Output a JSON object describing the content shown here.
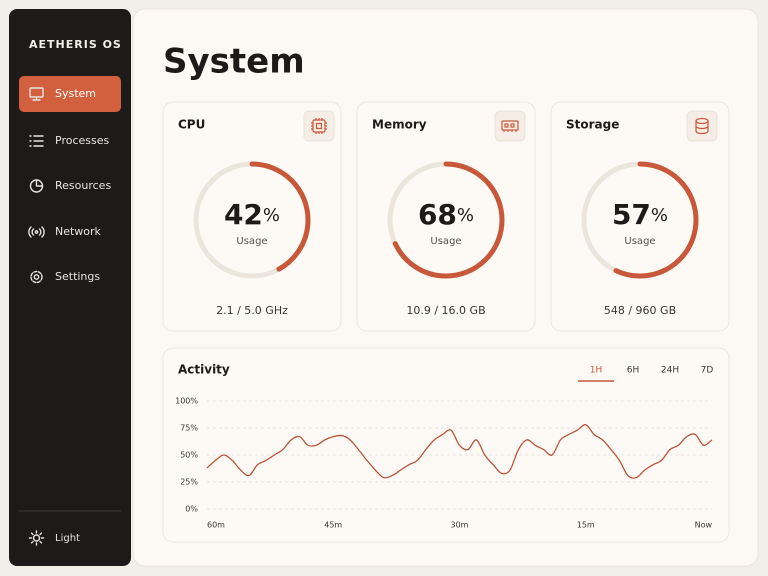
{
  "sidebar": {
    "brand": "AETHERIS OS",
    "nav": [
      "System",
      "Processes",
      "Resources",
      "Network",
      "Settings"
    ],
    "active_nav": 0,
    "theme": "Light"
  },
  "header": {
    "title": "System"
  },
  "gauges": {
    "range": [
      0,
      100
    ],
    "items": [
      {
        "label": "CPU",
        "value": 42,
        "unit": "%",
        "caption": "Usage",
        "detail": "2.1 / 5.0 GHz"
      },
      {
        "label": "Memory",
        "value": 68,
        "unit": "%",
        "caption": "Usage",
        "detail": "10.9 / 16.0 GB"
      },
      {
        "label": "Storage",
        "value": 57,
        "unit": "%",
        "caption": "Usage",
        "detail": "548 / 960 GB"
      }
    ]
  },
  "chart_data": {
    "type": "line",
    "title": "Activity",
    "ranges": [
      "1H",
      "6H",
      "24H",
      "7D"
    ],
    "active_range": 0,
    "x": [
      60,
      59,
      58,
      57,
      56,
      55,
      54,
      53,
      52,
      51,
      50,
      49,
      48,
      47,
      46,
      45,
      44,
      43,
      42,
      41,
      40,
      39,
      38,
      37,
      36,
      35,
      34,
      33,
      32,
      31,
      30,
      29,
      28,
      27,
      26,
      25,
      24,
      23,
      22,
      21,
      20,
      19,
      18,
      17,
      16,
      15,
      14,
      13,
      12,
      11,
      10,
      9,
      8,
      7,
      6,
      5,
      4,
      3,
      2,
      1,
      0
    ],
    "values": [
      38,
      45,
      50,
      45,
      36,
      31,
      41,
      45,
      50,
      55,
      64,
      67,
      59,
      59,
      64,
      67,
      68,
      64,
      55,
      45,
      36,
      29,
      31,
      36,
      41,
      45,
      55,
      64,
      69,
      73,
      59,
      55,
      64,
      50,
      41,
      33,
      36,
      55,
      64,
      59,
      55,
      50,
      64,
      69,
      73,
      78,
      69,
      64,
      55,
      45,
      31,
      29,
      36,
      41,
      45,
      55,
      59,
      67,
      69,
      59,
      64
    ],
    "color": "#b9553a",
    "xlim": [
      60,
      0
    ],
    "xticks": [
      {
        "value": 60,
        "label": "60m"
      },
      {
        "value": 45,
        "label": "45m"
      },
      {
        "value": 30,
        "label": "30m"
      },
      {
        "value": 15,
        "label": "15m"
      },
      {
        "value": 0,
        "label": "Now"
      }
    ],
    "ylim": [
      0,
      100
    ],
    "yticks": [
      {
        "value": 0,
        "label": "0%"
      },
      {
        "value": 25,
        "label": "25%"
      },
      {
        "value": 50,
        "label": "50%"
      },
      {
        "value": 75,
        "label": "75%"
      },
      {
        "value": 100,
        "label": "100%"
      }
    ],
    "grid": true
  }
}
